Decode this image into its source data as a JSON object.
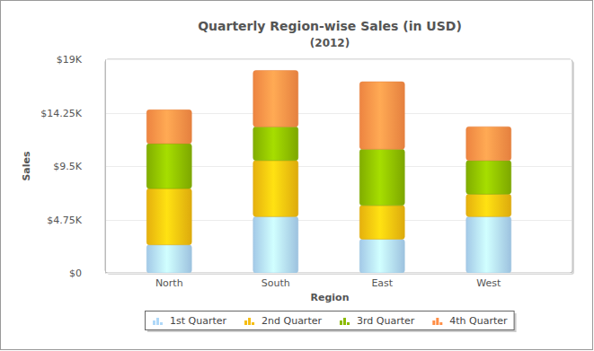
{
  "chart_data": {
    "type": "bar",
    "stacked": true,
    "title": "Quarterly Region-wise Sales (in USD)",
    "subtitle": "(2012)",
    "x_label": "Region",
    "y_label": "Sales",
    "categories": [
      "North",
      "South",
      "East",
      "West"
    ],
    "series": [
      {
        "name": "1st Quarter",
        "color": "#AFD8F8",
        "values": [
          2500,
          5000,
          3000,
          5000
        ]
      },
      {
        "name": "2nd Quarter",
        "color": "#F6BD0F",
        "values": [
          5000,
          5000,
          3000,
          2000
        ]
      },
      {
        "name": "3rd Quarter",
        "color": "#8BBA00",
        "values": [
          4000,
          3000,
          5000,
          3000
        ]
      },
      {
        "name": "4th Quarter",
        "color": "#FF8E46",
        "values": [
          3000,
          5000,
          6000,
          3000
        ]
      }
    ],
    "ylim": [
      0,
      19000
    ],
    "yticks": [
      {
        "value": 0,
        "label": "$0"
      },
      {
        "value": 4750,
        "label": "$4.75K"
      },
      {
        "value": 9500,
        "label": "$9.5K"
      },
      {
        "value": 14250,
        "label": "$14.25K"
      },
      {
        "value": 19000,
        "label": "$19K"
      }
    ],
    "grid": true,
    "legend": "bottom"
  }
}
